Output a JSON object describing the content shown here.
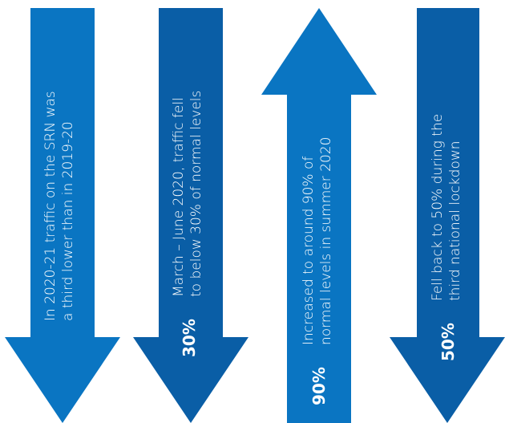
{
  "colors": {
    "arrow1": "#0a75c2",
    "arrow2": "#0a5ea6",
    "arrow3": "#0a75c2",
    "arrow4": "#0a5ea6",
    "text": "#ffffff"
  },
  "arrows": [
    {
      "direction": "down",
      "percent": "",
      "lines": [
        "In 2020-21 traffic on the SRN was",
        "a third lower than in 2019-20"
      ]
    },
    {
      "direction": "down",
      "percent": "30%",
      "lines": [
        "March – June 2020, traffic fell",
        "to below 30% of normal levels"
      ]
    },
    {
      "direction": "up",
      "percent": "90%",
      "lines": [
        "Increased to around 90% of",
        "normal levels in summer 2020"
      ]
    },
    {
      "direction": "down",
      "percent": "50%",
      "lines": [
        "Fell back to 50% during the",
        "third national lockdown"
      ]
    }
  ]
}
